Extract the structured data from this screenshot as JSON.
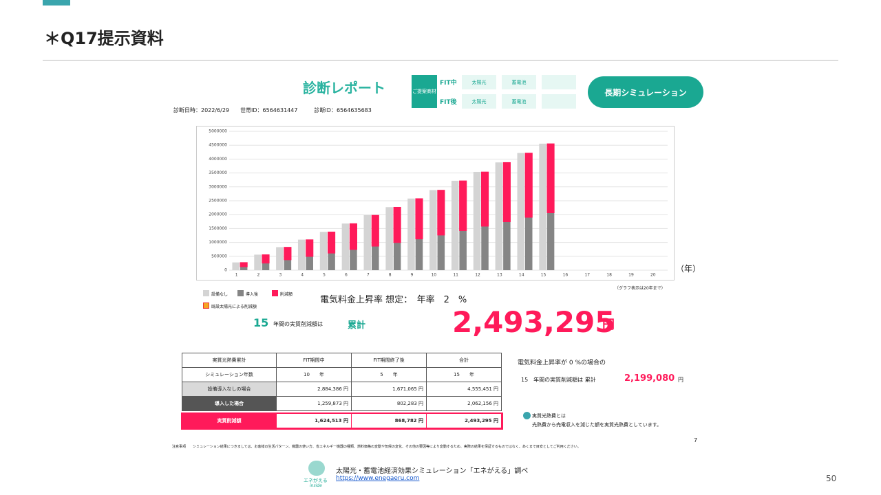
{
  "header": {
    "title": "＊Q17提示資料"
  },
  "report": {
    "title": "診断レポート",
    "proposal_label": "ご提案商材",
    "fit_during": "FIT中",
    "fit_after": "FIT後",
    "items_during": [
      "太陽光",
      "蓄電池"
    ],
    "items_after": [
      "太陽光",
      "蓄電池"
    ],
    "button": "長期シミュレーション",
    "meta": "診断日時：2022/6/29　　世帯ID：6564631447　　　診断ID：6564635683"
  },
  "chart_data": {
    "type": "bar",
    "stacked": true,
    "x_unit": "（年）",
    "note": "（グラフ表示は20年まで）",
    "categories": [
      1,
      2,
      3,
      4,
      5,
      6,
      7,
      8,
      9,
      10,
      11,
      12,
      13,
      14,
      15,
      16,
      17,
      18,
      19,
      20
    ],
    "series": [
      {
        "name": "設備なし",
        "color": "#d4d4d4",
        "values": [
          280000,
          560000,
          830000,
          1100000,
          1380000,
          1680000,
          1980000,
          2270000,
          2580000,
          2884386,
          3220000,
          3540000,
          3880000,
          4220000,
          4555451,
          0,
          0,
          0,
          0,
          0
        ]
      },
      {
        "name": "導入後",
        "color": "#858585",
        "stack": "b",
        "values": [
          120000,
          250000,
          370000,
          490000,
          610000,
          740000,
          860000,
          990000,
          1120000,
          1259873,
          1420000,
          1580000,
          1740000,
          1900000,
          2062156,
          0,
          0,
          0,
          0,
          0
        ]
      },
      {
        "name": "削減額",
        "color": "#ff1a5a",
        "stack": "b",
        "values": [
          160000,
          310000,
          460000,
          610000,
          770000,
          940000,
          1120000,
          1280000,
          1460000,
          1624513,
          1800000,
          1960000,
          2140000,
          2320000,
          2493295,
          0,
          0,
          0,
          0,
          0
        ]
      }
    ],
    "legend_extra": {
      "name": "既設太陽光による削減額",
      "color": "#f5a623"
    },
    "ylim": [
      0,
      5000000
    ],
    "yticks": [
      0,
      500000,
      1000000,
      1500000,
      2000000,
      2500000,
      3000000,
      3500000,
      4000000,
      4500000,
      5000000
    ],
    "grid": true
  },
  "summary": {
    "rate_text": "電気料金上昇率 想定：　年率　2　%",
    "years": "15",
    "years_text": "年間の実質削減額は",
    "cumulative": "累計",
    "amount": "2,493,295",
    "unit": "円"
  },
  "table": {
    "header": [
      "実質光熱費累計",
      "FIT期間中",
      "FIT期間終了後",
      "合計"
    ],
    "rows": [
      [
        "シミュレーション年数",
        "10　　年",
        "5　　年",
        "15　　年"
      ],
      [
        "設備導入なしの場合",
        "2,884,386 円",
        "1,671,065 円",
        "4,555,451 円"
      ],
      [
        "導入した場合",
        "1,259,873 円",
        "802,283 円",
        "2,062,156 円"
      ]
    ],
    "total": [
      "実質削減額",
      "1,624,513 円",
      "868,782 円",
      "2,493,295 円"
    ]
  },
  "side": {
    "line1": "電気料金上昇率が  0  %の場合の",
    "line2a": "15　年間の実質削減額は 累計",
    "line2b": "2,199,080",
    "line2c": "円",
    "def_title": "実質光熱費とは",
    "def_body": "光熱費から売電収入を減じた額を実質光熱費としています。",
    "page_small": "7"
  },
  "notice": "注意事項　　シミュレーション結果につきましては、お客様の生活パターン、機器の使い方、省エネルギー機器の種類、燃料価格の変動や気候の変化、その他の要因等により変動するため、実際の結果を保証するものではなく、あくまで目安としてご利用ください。",
  "footer": {
    "source": "太陽光・蓄電池経済効果シミュレーション「エネがえる」調べ",
    "url": "https://www.enegaeru.com",
    "logo": "エネがえる",
    "logo_sub": "inside",
    "page": "50"
  }
}
